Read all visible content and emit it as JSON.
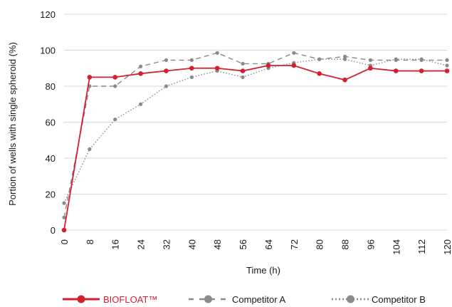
{
  "chart_data": {
    "type": "line",
    "xlabel": "Time (h)",
    "ylabel": "Portion of wells with single spheroid (%)",
    "x": [
      0,
      8,
      16,
      24,
      32,
      40,
      48,
      56,
      64,
      72,
      80,
      88,
      96,
      104,
      112,
      120
    ],
    "xticks": [
      "0",
      "8",
      "16",
      "24",
      "32",
      "40",
      "48",
      "56",
      "64",
      "72",
      "80",
      "88",
      "96",
      "104",
      "112",
      "120"
    ],
    "ylim": [
      0,
      120
    ],
    "yticks": [
      "0",
      "20",
      "40",
      "60",
      "80",
      "100",
      "120"
    ],
    "grid": "horizontal",
    "legend_position": "bottom",
    "series": [
      {
        "name": "BIOFLOAT™",
        "color": "#d41f2f",
        "style": "solid",
        "values": [
          0,
          85,
          85,
          87,
          88.5,
          90,
          90,
          88.5,
          91.5,
          91.5,
          87,
          83.5,
          90,
          88.5,
          88.5,
          88.5
        ]
      },
      {
        "name": "Competitor A",
        "color": "#8a8a8a",
        "style": "dashed",
        "values": [
          7,
          80,
          80,
          91,
          94.5,
          94.5,
          98.5,
          92.5,
          92.5,
          98.5,
          95,
          96.5,
          94.5,
          94.5,
          94.5,
          94.5
        ]
      },
      {
        "name": "Competitor B",
        "color": "#8a8a8a",
        "style": "dotted",
        "values": [
          15,
          45,
          61.5,
          70,
          80,
          85,
          88.5,
          85,
          90,
          93,
          95,
          95,
          91.5,
          95,
          95,
          91.5
        ]
      }
    ]
  }
}
